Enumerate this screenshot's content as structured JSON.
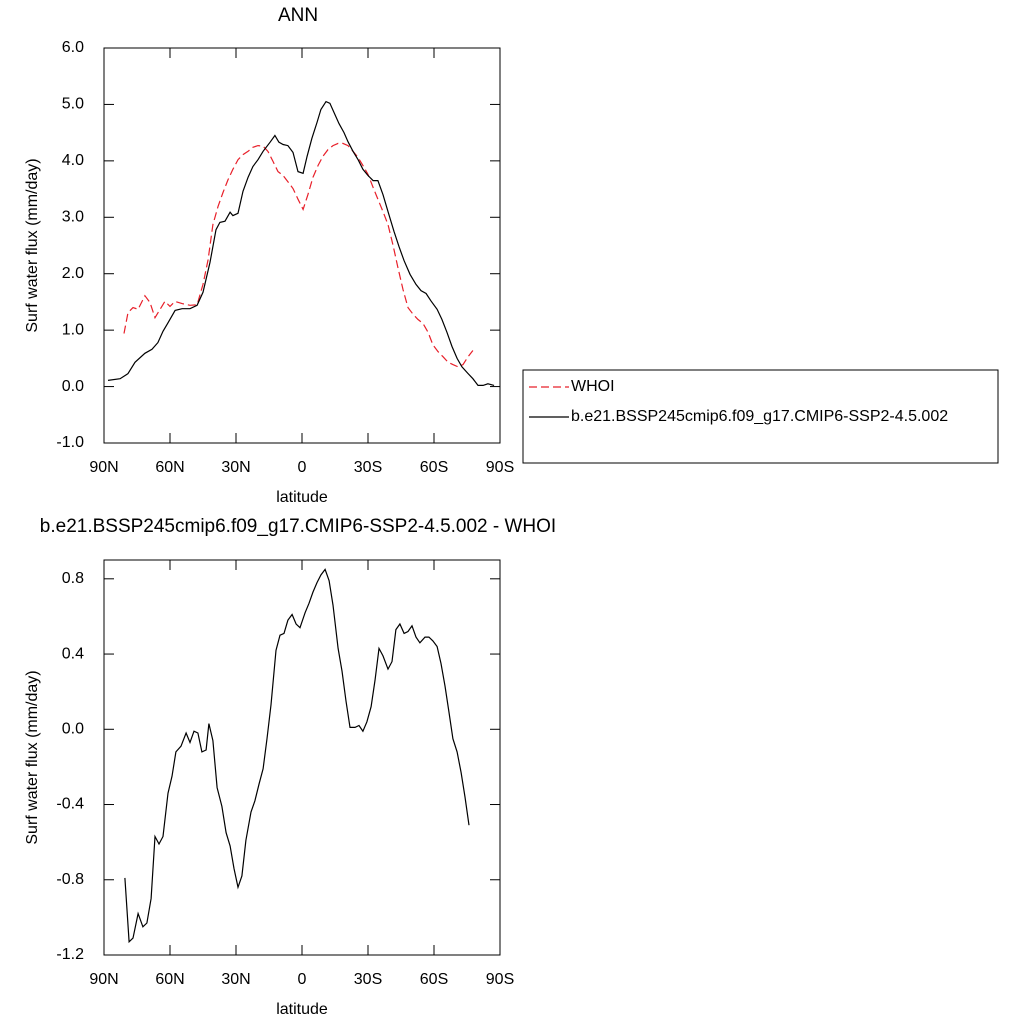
{
  "chart_data": [
    {
      "type": "line",
      "title": "ANN",
      "xlabel": "latitude",
      "ylabel": "Surf water flux (mm/day)",
      "xlim": [
        90,
        -90
      ],
      "xticks": [
        {
          "value": 90,
          "label": "90N"
        },
        {
          "value": 60,
          "label": "60N"
        },
        {
          "value": 30,
          "label": "30N"
        },
        0,
        {
          "value": -30,
          "label": "30S"
        },
        {
          "value": -60,
          "label": "60S"
        },
        {
          "value": -90,
          "label": "90S"
        }
      ],
      "ylim": [
        -1,
        6
      ],
      "yticks": [
        {
          "value": -1,
          "label": "-1.0"
        },
        {
          "value": 0,
          "label": "0.0"
        },
        {
          "value": 1,
          "label": "1.0"
        },
        {
          "value": 2,
          "label": "2.0"
        },
        {
          "value": 3,
          "label": "3.0"
        },
        {
          "value": 4,
          "label": "4.0"
        },
        {
          "value": 5,
          "label": "5.0"
        },
        {
          "value": 6,
          "label": "6.0"
        }
      ],
      "legend": "outside right",
      "series": [
        {
          "name": "WHOI",
          "color": "#e8202a",
          "dashed": true,
          "x": [
            80.9,
            79.1,
            76.8,
            74.5,
            71.4,
            69.1,
            66.8,
            64.5,
            62.3,
            60.0,
            57.7,
            54.5,
            50.9,
            47.7,
            45.0,
            42.7,
            40.5,
            38.2,
            35.9,
            33.6,
            31.4,
            29.1,
            26.8,
            24.5,
            22.3,
            20.0,
            17.7,
            15.5,
            13.2,
            10.9,
            8.6,
            6.4,
            4.1,
            1.8,
            -0.5,
            -2.7,
            -5.0,
            -7.3,
            -9.5,
            -11.8,
            -14.1,
            -16.4,
            -18.6,
            -20.9,
            -23.2,
            -25.5,
            -27.7,
            -30.0,
            -32.3,
            -34.5,
            -36.8,
            -39.1,
            -41.4,
            -43.6,
            -45.9,
            -48.2,
            -50.5,
            -52.7,
            -55.0,
            -57.3,
            -59.5,
            -61.8,
            -64.1,
            -66.4,
            -68.6,
            -70.9,
            -73.2,
            -75.5,
            -77.7
          ],
          "values": [
            0.94,
            1.31,
            1.4,
            1.37,
            1.61,
            1.49,
            1.22,
            1.37,
            1.51,
            1.42,
            1.51,
            1.47,
            1.44,
            1.45,
            1.81,
            2.25,
            2.87,
            3.19,
            3.44,
            3.67,
            3.85,
            4.02,
            4.11,
            4.17,
            4.24,
            4.27,
            4.26,
            4.17,
            3.99,
            3.81,
            3.74,
            3.63,
            3.51,
            3.32,
            3.14,
            3.4,
            3.71,
            3.92,
            4.08,
            4.2,
            4.27,
            4.31,
            4.31,
            4.27,
            4.17,
            4.06,
            3.92,
            3.76,
            3.53,
            3.32,
            3.1,
            2.87,
            2.5,
            2.11,
            1.72,
            1.4,
            1.28,
            1.19,
            1.12,
            0.96,
            0.74,
            0.62,
            0.53,
            0.43,
            0.39,
            0.35,
            0.39,
            0.53,
            0.64
          ]
        },
        {
          "name": "b.e21.BSSP245cmip6.f09_g17.CMIP6-SSP2-4.5.002",
          "color": "#000000",
          "dashed": false,
          "x": [
            88.2,
            82.7,
            79.1,
            75.9,
            71.4,
            68.2,
            65.5,
            63.2,
            60.9,
            57.7,
            54.5,
            50.9,
            47.7,
            45.0,
            41.8,
            39.1,
            37.3,
            35.0,
            32.7,
            31.4,
            29.1,
            26.8,
            24.5,
            22.3,
            20.0,
            17.7,
            14.5,
            12.3,
            10.5,
            8.6,
            6.4,
            4.1,
            1.8,
            -0.5,
            -2.3,
            -4.5,
            -6.8,
            -8.6,
            -10.9,
            -12.7,
            -14.5,
            -16.8,
            -19.1,
            -20.9,
            -23.2,
            -25.5,
            -27.7,
            -30.0,
            -32.3,
            -34.5,
            -36.8,
            -39.1,
            -41.8,
            -44.1,
            -46.4,
            -49.1,
            -51.8,
            -54.1,
            -56.4,
            -58.6,
            -61.4,
            -63.6,
            -65.9,
            -68.2,
            -70.5,
            -72.7,
            -75.5,
            -77.7,
            -80.0,
            -82.3,
            -84.5,
            -87.3
          ],
          "values": [
            0.11,
            0.14,
            0.23,
            0.43,
            0.59,
            0.66,
            0.78,
            0.98,
            1.13,
            1.35,
            1.38,
            1.38,
            1.44,
            1.67,
            2.2,
            2.78,
            2.91,
            2.93,
            3.09,
            3.03,
            3.07,
            3.46,
            3.71,
            3.9,
            4.02,
            4.17,
            4.33,
            4.45,
            4.33,
            4.29,
            4.27,
            4.15,
            3.81,
            3.78,
            4.08,
            4.4,
            4.68,
            4.91,
            5.05,
            5.02,
            4.86,
            4.66,
            4.5,
            4.34,
            4.17,
            4.02,
            3.85,
            3.74,
            3.65,
            3.65,
            3.4,
            3.1,
            2.75,
            2.48,
            2.23,
            1.99,
            1.81,
            1.7,
            1.65,
            1.52,
            1.37,
            1.19,
            0.96,
            0.71,
            0.5,
            0.35,
            0.23,
            0.14,
            0.02,
            0.02,
            0.05,
            0.02
          ]
        }
      ]
    },
    {
      "type": "line",
      "title": "b.e21.BSSP245cmip6.f09_g17.CMIP6-SSP2-4.5.002 - WHOI",
      "xlabel": "latitude",
      "ylabel": "Surf water flux (mm/day)",
      "xlim": [
        90,
        -90
      ],
      "xticks": [
        {
          "value": 90,
          "label": "90N"
        },
        {
          "value": 60,
          "label": "60N"
        },
        {
          "value": 30,
          "label": "30N"
        },
        0,
        {
          "value": -30,
          "label": "30S"
        },
        {
          "value": -60,
          "label": "60S"
        },
        {
          "value": -90,
          "label": "90S"
        }
      ],
      "ylim": [
        -1.2,
        0.9
      ],
      "yticks": [
        -1.2,
        -0.8,
        -0.4,
        {
          "value": 0,
          "label": "0.0"
        },
        0.4,
        0.8
      ],
      "series": [
        {
          "color": "#000000",
          "dashed": false,
          "x": [
            80.5,
            78.6,
            76.8,
            74.5,
            72.3,
            70.5,
            68.6,
            66.8,
            65.0,
            63.2,
            60.9,
            59.1,
            57.3,
            55.0,
            52.7,
            50.9,
            49.1,
            47.3,
            45.5,
            43.6,
            42.3,
            40.5,
            38.6,
            36.4,
            34.5,
            32.7,
            30.9,
            29.1,
            27.3,
            25.5,
            23.2,
            21.4,
            19.5,
            17.7,
            15.9,
            14.1,
            11.8,
            10.0,
            8.2,
            6.4,
            4.5,
            2.7,
            0.9,
            -1.4,
            -3.2,
            -5.0,
            -6.8,
            -8.6,
            -10.5,
            -12.3,
            -14.1,
            -16.4,
            -18.2,
            -20.0,
            -21.8,
            -24.1,
            -25.9,
            -27.7,
            -29.5,
            -31.4,
            -33.2,
            -35.0,
            -36.8,
            -39.1,
            -40.9,
            -42.7,
            -44.5,
            -46.4,
            -48.2,
            -50.0,
            -51.8,
            -53.6,
            -55.9,
            -57.7,
            -59.5,
            -61.4,
            -63.2,
            -65.0,
            -66.8,
            -68.6,
            -70.5,
            -72.3,
            -74.1,
            -75.9
          ],
          "values": [
            -0.79,
            -1.13,
            -1.11,
            -0.98,
            -1.05,
            -1.03,
            -0.9,
            -0.57,
            -0.61,
            -0.57,
            -0.34,
            -0.25,
            -0.12,
            -0.09,
            -0.02,
            -0.07,
            -0.01,
            -0.02,
            -0.12,
            -0.11,
            0.03,
            -0.06,
            -0.31,
            -0.41,
            -0.55,
            -0.62,
            -0.74,
            -0.84,
            -0.78,
            -0.59,
            -0.44,
            -0.38,
            -0.29,
            -0.21,
            -0.05,
            0.13,
            0.42,
            0.5,
            0.51,
            0.58,
            0.61,
            0.56,
            0.54,
            0.62,
            0.67,
            0.73,
            0.78,
            0.82,
            0.85,
            0.79,
            0.66,
            0.43,
            0.31,
            0.15,
            0.01,
            0.01,
            0.02,
            -0.01,
            0.04,
            0.12,
            0.26,
            0.43,
            0.39,
            0.32,
            0.36,
            0.53,
            0.56,
            0.51,
            0.52,
            0.55,
            0.49,
            0.46,
            0.49,
            0.49,
            0.47,
            0.44,
            0.35,
            0.23,
            0.09,
            -0.05,
            -0.12,
            -0.23,
            -0.36,
            -0.51
          ]
        }
      ]
    }
  ]
}
